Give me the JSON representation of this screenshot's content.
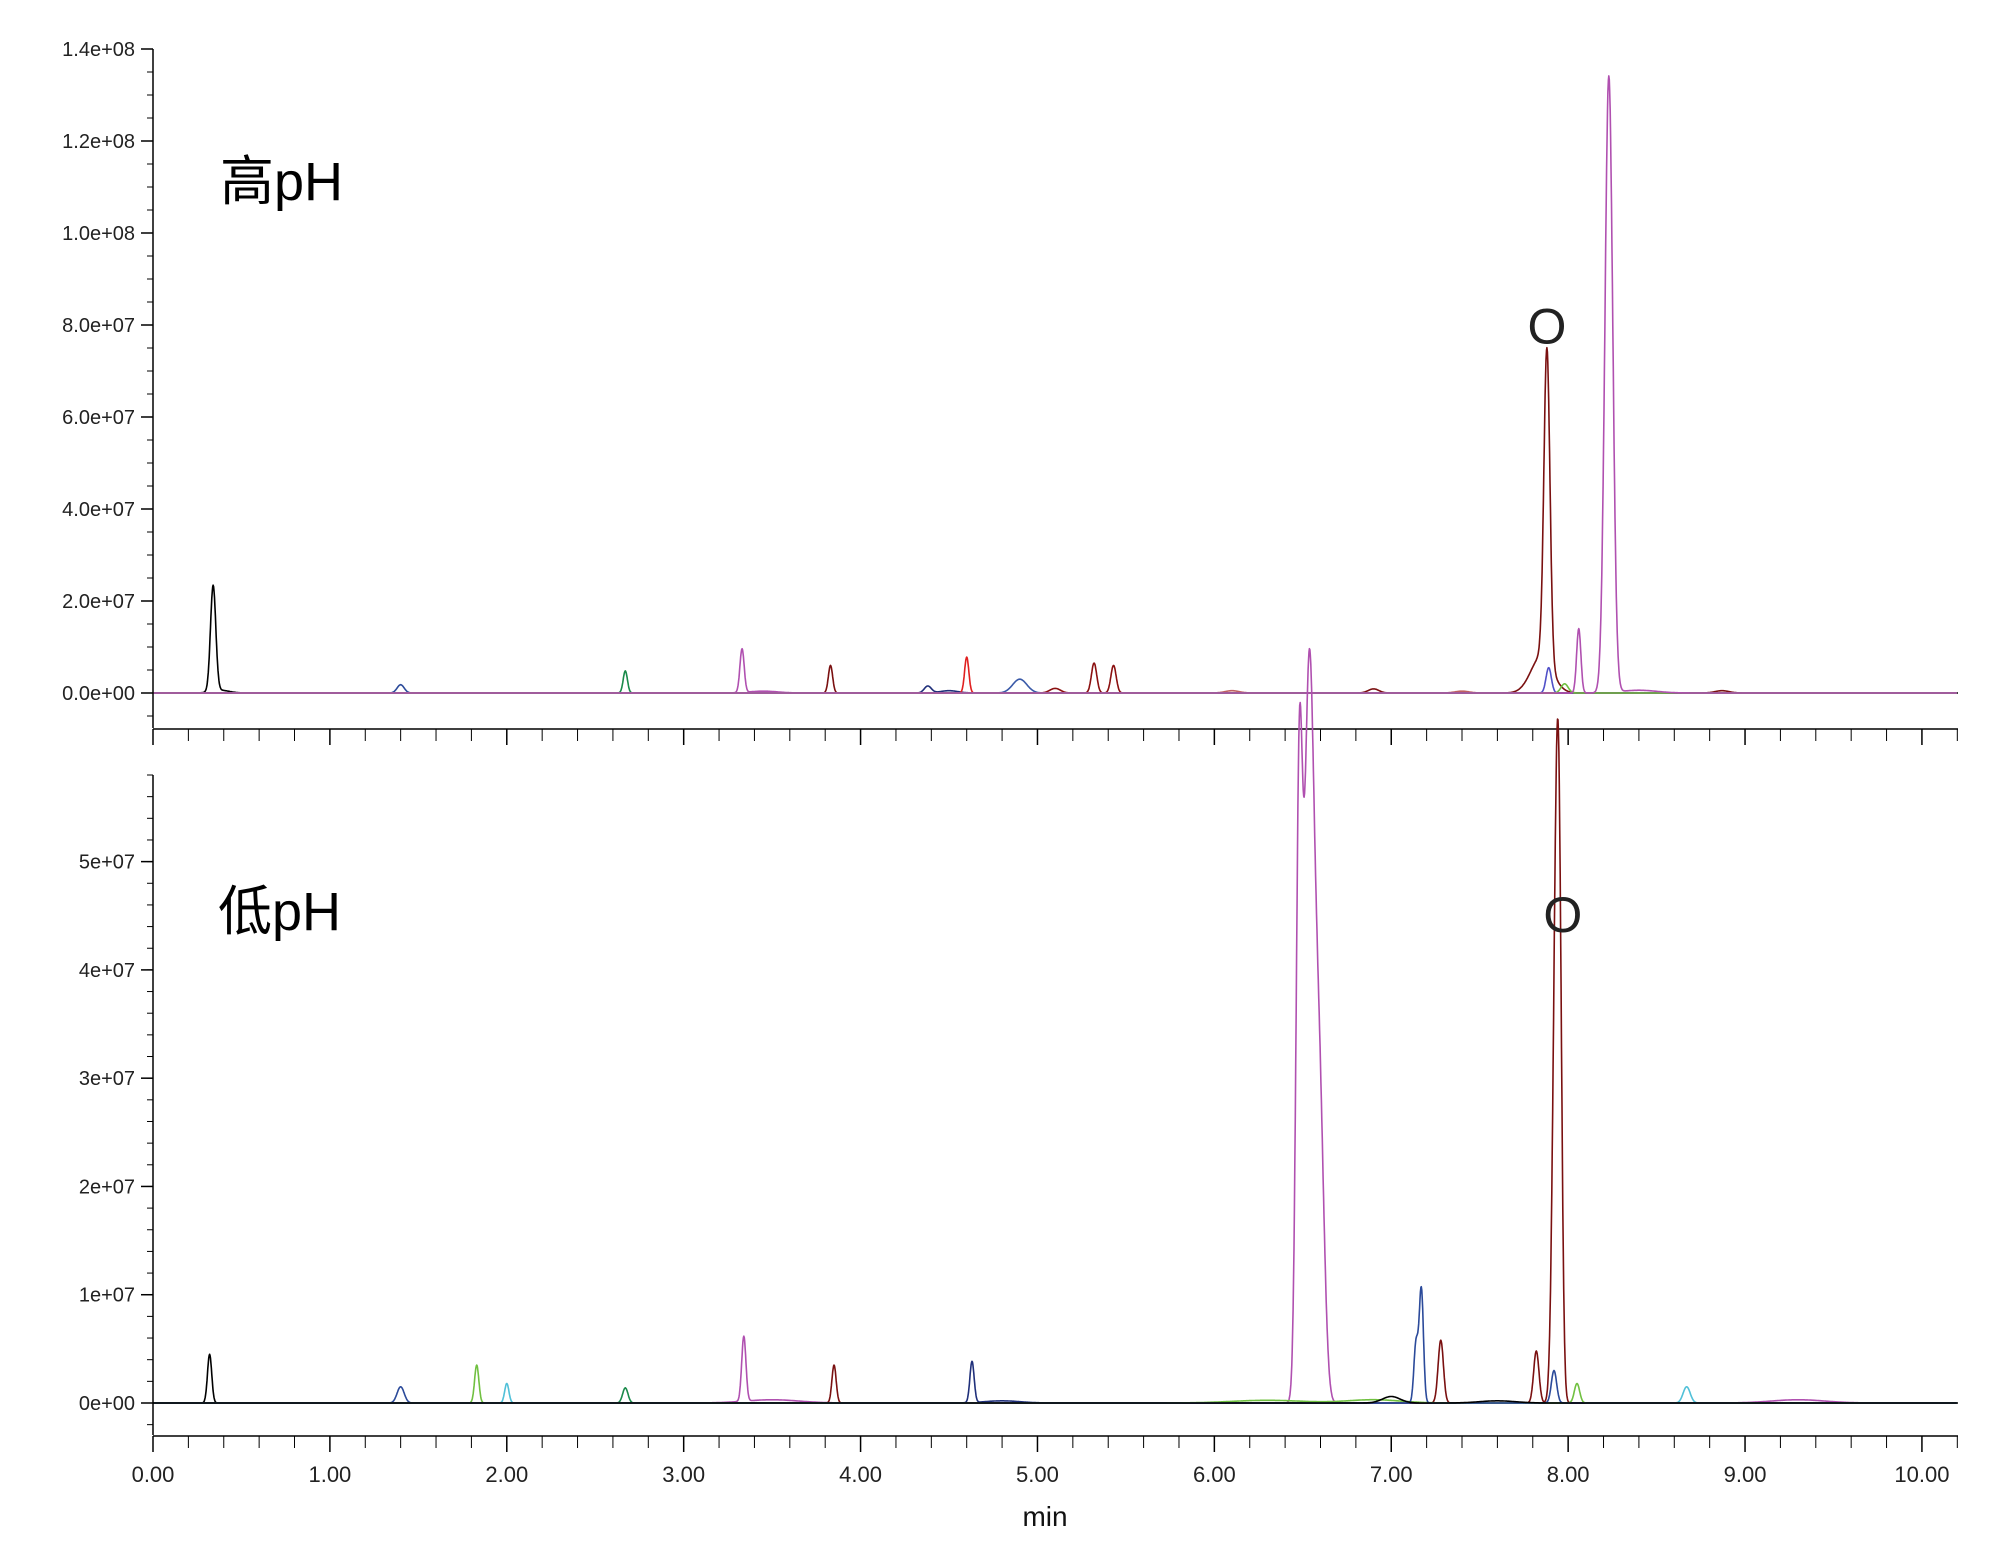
{
  "chart_data": [
    {
      "type": "line",
      "panel_label": "高pH",
      "xlim": [
        0,
        10.3
      ],
      "ylim": [
        -7000000,
        140000000
      ],
      "y_tick_values": [
        0,
        20000000,
        40000000,
        60000000,
        80000000,
        100000000,
        120000000,
        140000000
      ],
      "y_tick_labels": [
        "0.0e+00",
        "2.0e+07",
        "4.0e+07",
        "6.0e+07",
        "8.0e+07",
        "1.0e+08",
        "1.2e+08",
        "1.4e+08"
      ],
      "y_minor_step": 5000000,
      "x_minor_step": 0.2,
      "annotations": [
        {
          "text": "O",
          "x": 7.88,
          "y": 76000000
        }
      ],
      "series": [
        {
          "color": "#000000",
          "peaks": [
            [
              0.34,
              23000000,
              0.015
            ],
            [
              0.38,
              600000,
              0.05
            ]
          ]
        },
        {
          "color": "#2b4a9a",
          "peaks": [
            [
              1.4,
              1800000,
              0.02
            ]
          ]
        },
        {
          "color": "#1a8a4a",
          "peaks": [
            [
              2.67,
              4800000,
              0.012
            ]
          ]
        },
        {
          "color": "#b050b0",
          "peaks": [
            [
              3.33,
              9500000,
              0.012
            ],
            [
              3.45,
              400000,
              0.08
            ]
          ]
        },
        {
          "color": "#7a1010",
          "peaks": [
            [
              3.83,
              6000000,
              0.012
            ]
          ]
        },
        {
          "color": "#1f2f7a",
          "peaks": [
            [
              4.38,
              1500000,
              0.02
            ],
            [
              4.5,
              500000,
              0.05
            ]
          ]
        },
        {
          "color": "#e02020",
          "peaks": [
            [
              4.6,
              7800000,
              0.012
            ]
          ]
        },
        {
          "color": "#3a5aa8",
          "peaks": [
            [
              4.9,
              3000000,
              0.04
            ]
          ]
        },
        {
          "color": "#8b1010",
          "peaks": [
            [
              5.1,
              1000000,
              0.03
            ],
            [
              5.32,
              6500000,
              0.015
            ],
            [
              5.43,
              6000000,
              0.015
            ]
          ]
        },
        {
          "color": "#c06060",
          "peaks": [
            [
              6.1,
              500000,
              0.04
            ],
            [
              7.4,
              400000,
              0.04
            ]
          ]
        },
        {
          "color": "#7a1010",
          "peaks": [
            [
              6.9,
              900000,
              0.03
            ],
            [
              7.85,
              8000000,
              0.06
            ],
            [
              7.88,
              68000000,
              0.017
            ],
            [
              8.87,
              500000,
              0.04
            ]
          ]
        },
        {
          "color": "#5050c8",
          "peaks": [
            [
              7.89,
              5500000,
              0.015
            ]
          ]
        },
        {
          "color": "#70c040",
          "peaks": [
            [
              7.98,
              2000000,
              0.02
            ]
          ]
        },
        {
          "color": "#b050b0",
          "peaks": [
            [
              8.06,
              14000000,
              0.012
            ],
            [
              8.23,
              134000000,
              0.022
            ],
            [
              8.4,
              600000,
              0.1
            ]
          ]
        }
      ]
    },
    {
      "type": "line",
      "panel_label": "低pH",
      "xlabel": "min",
      "xlim": [
        0,
        10.3
      ],
      "ylim": [
        -3000000,
        58000000
      ],
      "y_tick_values": [
        0,
        10000000,
        20000000,
        30000000,
        40000000,
        50000000
      ],
      "y_tick_labels": [
        "0e+00",
        "1e+07",
        "2e+07",
        "3e+07",
        "4e+07",
        "5e+07"
      ],
      "y_minor_step": 2000000,
      "x_tick_values": [
        0,
        1,
        2,
        3,
        4,
        5,
        6,
        7,
        8,
        9,
        10
      ],
      "x_tick_labels": [
        "0.00",
        "1.00",
        "2.00",
        "3.00",
        "4.00",
        "5.00",
        "6.00",
        "7.00",
        "8.00",
        "9.00",
        "10.00"
      ],
      "x_minor_step": 0.2,
      "annotations": [
        {
          "text": "O",
          "x": 7.97,
          "y": 43500000
        }
      ],
      "series": [
        {
          "color": "#000000",
          "peaks": [
            [
              0.32,
              4500000,
              0.012
            ]
          ]
        },
        {
          "color": "#2b4a9a",
          "peaks": [
            [
              1.4,
              1500000,
              0.02
            ]
          ]
        },
        {
          "color": "#70c040",
          "peaks": [
            [
              1.83,
              3500000,
              0.012
            ]
          ]
        },
        {
          "color": "#50c0d8",
          "peaks": [
            [
              2.0,
              1800000,
              0.012
            ],
            [
              8.67,
              1500000,
              0.02
            ]
          ]
        },
        {
          "color": "#1a8a4a",
          "peaks": [
            [
              2.67,
              1400000,
              0.015
            ]
          ]
        },
        {
          "color": "#b050b0",
          "peaks": [
            [
              3.34,
              6000000,
              0.012
            ],
            [
              3.5,
              300000,
              0.15
            ],
            [
              6.48,
              56000000,
              0.018
            ],
            [
              6.53,
              48000000,
              0.025
            ],
            [
              6.56,
              30000000,
              0.03
            ],
            [
              6.6,
              18000000,
              0.025
            ],
            [
              9.3,
              300000,
              0.15
            ]
          ]
        },
        {
          "color": "#7a1010",
          "peaks": [
            [
              3.85,
              3500000,
              0.012
            ],
            [
              7.28,
              5800000,
              0.015
            ],
            [
              7.82,
              4800000,
              0.015
            ],
            [
              7.93,
              41000000,
              0.018
            ],
            [
              7.95,
              35000000,
              0.015
            ]
          ]
        },
        {
          "color": "#1f2f7a",
          "peaks": [
            [
              4.63,
              3800000,
              0.012
            ],
            [
              4.8,
              200000,
              0.1
            ]
          ]
        },
        {
          "color": "#70c040",
          "peaks": [
            [
              6.3,
              250000,
              0.2
            ],
            [
              6.9,
              300000,
              0.15
            ],
            [
              8.05,
              1800000,
              0.015
            ]
          ]
        },
        {
          "color": "#2b4a9a",
          "peaks": [
            [
              7.14,
              5500000,
              0.012
            ],
            [
              7.17,
              10500000,
              0.012
            ],
            [
              7.92,
              3000000,
              0.015
            ]
          ]
        },
        {
          "color": "#000000",
          "peaks": [
            [
              7.0,
              600000,
              0.05
            ],
            [
              7.6,
              200000,
              0.1
            ]
          ]
        }
      ]
    }
  ]
}
